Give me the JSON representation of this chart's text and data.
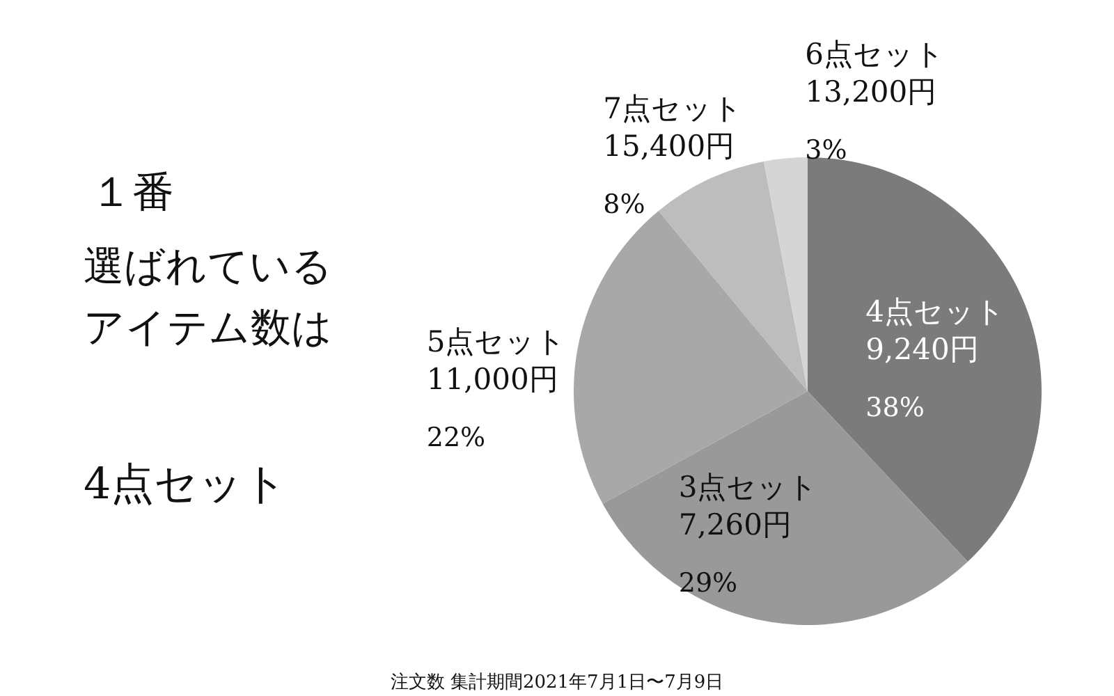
{
  "chart_data": {
    "type": "pie",
    "categories": [
      "4点セット\n9,240円",
      "3点セット\n7,260円",
      "5点セット\n11,000円",
      "7点セット\n15,400円",
      "6点セット\n13,200円"
    ],
    "values": [
      38,
      29,
      22,
      8,
      3
    ],
    "colors": [
      "#7b7b7b",
      "#999999",
      "#a8a8a8",
      "#bdbdbd",
      "#d5d5d5"
    ],
    "value_labels": [
      "38%",
      "29%",
      "22%",
      "8%",
      "3%"
    ],
    "annotations": [
      "１番",
      "選ばれている",
      "アイテム数は",
      "4点セット",
      "注文数 集計期間2021年7月1日〜7月9日"
    ]
  }
}
